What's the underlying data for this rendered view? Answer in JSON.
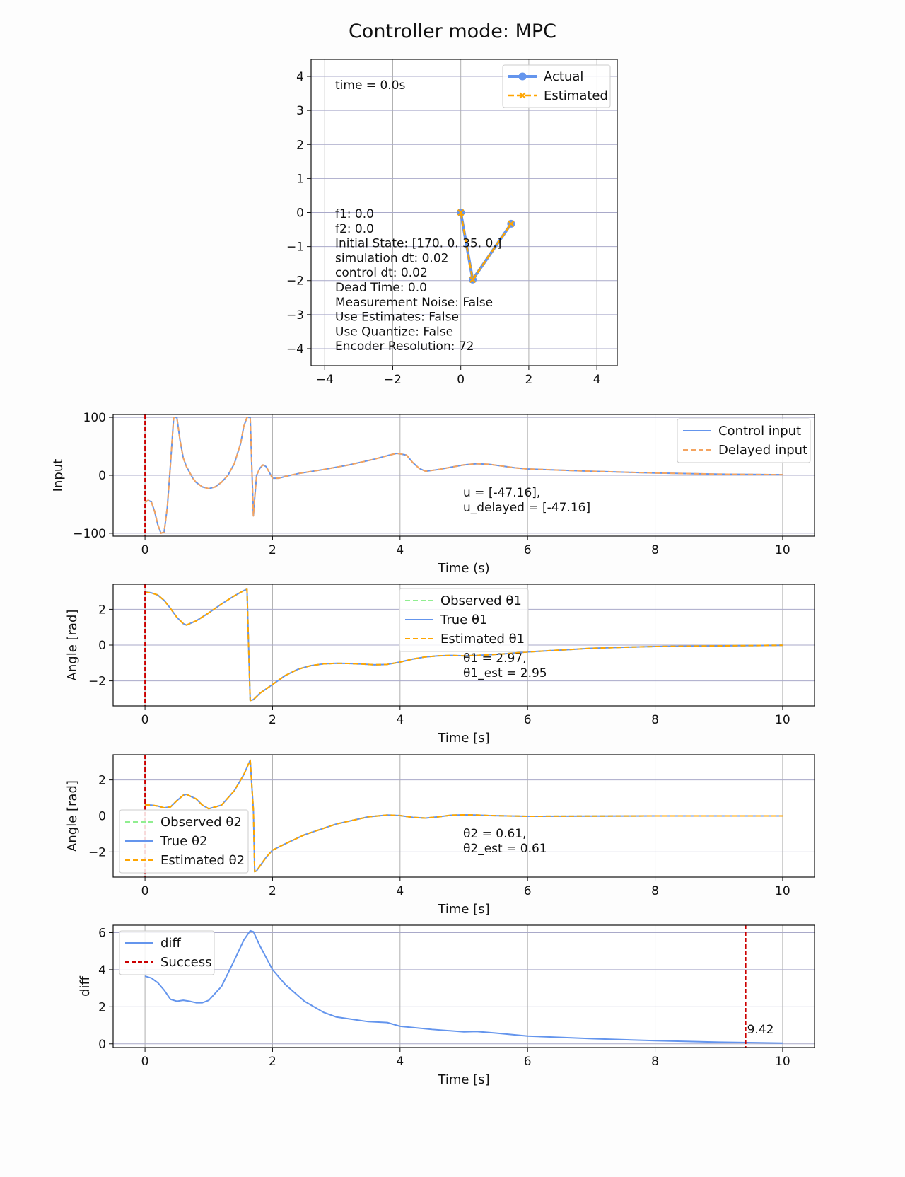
{
  "figure_title": "Controller mode: MPC",
  "colors": {
    "actual": "#6495ed",
    "estimated": "#ffa500",
    "delayed": "#f4a460",
    "observed": "#90ee90",
    "marker": "#cc0000",
    "grid": "#b0b0b0",
    "hgrid": "#a9a9c9"
  },
  "chart_data": [
    {
      "type": "line",
      "name": "pendulum",
      "xlim": [
        -4.4,
        4.6
      ],
      "ylim": [
        -4.5,
        4.5
      ],
      "xticks": [
        -4,
        -2,
        0,
        2,
        4
      ],
      "yticks": [
        -4,
        -3,
        -2,
        -1,
        0,
        1,
        2,
        3,
        4
      ],
      "time_text": "time = 0.0s",
      "info_lines": [
        "f1: 0.0",
        "f2: 0.0",
        "Initial State: [170.   0.  35.   0.]",
        "simulation dt: 0.02",
        "control dt: 0.02",
        "Dead Time: 0.0",
        "Measurement Noise: False",
        "Use Estimates: False",
        "Use Quantize: False",
        "Encoder Resolution: 72"
      ],
      "series": [
        {
          "name": "Actual",
          "x": [
            0,
            0.35,
            1.48
          ],
          "y": [
            0,
            -1.97,
            -0.33
          ]
        },
        {
          "name": "Estimated",
          "x": [
            0,
            0.35,
            1.48
          ],
          "y": [
            0,
            -1.97,
            -0.33
          ]
        }
      ],
      "legend": [
        "Actual",
        "Estimated"
      ],
      "legend_position": "upper right"
    },
    {
      "type": "line",
      "name": "input",
      "xlabel": "Time (s)",
      "ylabel": "Input",
      "xlim": [
        -0.5,
        10.5
      ],
      "ylim": [
        -105,
        105
      ],
      "xticks": [
        0,
        2,
        4,
        6,
        8,
        10
      ],
      "yticks": [
        -100,
        0,
        100
      ],
      "cursor_x": 0,
      "annotation": [
        "u = [-47.16],",
        "u_delayed = [-47.16]"
      ],
      "x": [
        0,
        0.05,
        0.1,
        0.15,
        0.2,
        0.25,
        0.3,
        0.35,
        0.4,
        0.45,
        0.5,
        0.55,
        0.6,
        0.65,
        0.7,
        0.75,
        0.8,
        0.9,
        1.0,
        1.1,
        1.2,
        1.3,
        1.4,
        1.5,
        1.55,
        1.6,
        1.65,
        1.7,
        1.72,
        1.75,
        1.8,
        1.85,
        1.9,
        2.0,
        2.1,
        2.2,
        2.4,
        2.8,
        3.2,
        3.6,
        3.8,
        3.95,
        4.1,
        4.2,
        4.3,
        4.4,
        4.6,
        4.8,
        5.0,
        5.2,
        5.4,
        5.6,
        5.8,
        6.0,
        6.5,
        7.0,
        8.0,
        9.0,
        10.0
      ],
      "series": [
        {
          "name": "Control input",
          "y": [
            -47,
            -43,
            -46,
            -62,
            -85,
            -100,
            -98,
            -55,
            20,
            100,
            100,
            60,
            30,
            15,
            5,
            -5,
            -12,
            -20,
            -23,
            -20,
            -12,
            0,
            20,
            55,
            85,
            100,
            100,
            -70,
            -40,
            0,
            12,
            18,
            15,
            -5,
            -5,
            -2,
            3,
            10,
            18,
            28,
            34,
            38,
            35,
            22,
            12,
            7,
            10,
            14,
            18,
            20,
            19,
            16,
            13,
            11,
            9,
            7,
            4,
            2,
            1
          ]
        },
        {
          "name": "Delayed input",
          "y": [
            -47,
            -43,
            -46,
            -62,
            -85,
            -100,
            -98,
            -55,
            20,
            100,
            100,
            60,
            30,
            15,
            5,
            -5,
            -12,
            -20,
            -23,
            -20,
            -12,
            0,
            20,
            55,
            85,
            100,
            100,
            -70,
            -40,
            0,
            12,
            18,
            15,
            -5,
            -5,
            -2,
            3,
            10,
            18,
            28,
            34,
            38,
            35,
            22,
            12,
            7,
            10,
            14,
            18,
            20,
            19,
            16,
            13,
            11,
            9,
            7,
            4,
            2,
            1
          ]
        }
      ],
      "legend": [
        "Control input",
        "Delayed input"
      ],
      "legend_position": "upper right"
    },
    {
      "type": "line",
      "name": "theta1",
      "xlabel": "Time [s]",
      "ylabel": "Angle [rad]",
      "xlim": [
        -0.5,
        10.5
      ],
      "ylim": [
        -3.4,
        3.4
      ],
      "xticks": [
        0,
        2,
        4,
        6,
        8,
        10
      ],
      "yticks": [
        -2,
        0,
        2
      ],
      "cursor_x": 0,
      "annotation": [
        "θ1 = 2.97,",
        "θ1_est = 2.95"
      ],
      "x": [
        0,
        0.1,
        0.2,
        0.3,
        0.4,
        0.5,
        0.6,
        0.65,
        0.8,
        1.0,
        1.2,
        1.4,
        1.55,
        1.6,
        1.62,
        1.65,
        1.7,
        1.8,
        2.0,
        2.2,
        2.4,
        2.6,
        2.8,
        3.0,
        3.2,
        3.4,
        3.6,
        3.8,
        4.0,
        4.2,
        4.4,
        4.6,
        4.8,
        5.0,
        5.2,
        5.6,
        6.0,
        6.5,
        7.0,
        7.5,
        8.0,
        9.0,
        10.0
      ],
      "series": [
        {
          "name": "Observed θ1",
          "y": [
            2.97,
            2.92,
            2.8,
            2.5,
            2.05,
            1.55,
            1.2,
            1.12,
            1.35,
            1.8,
            2.3,
            2.75,
            3.05,
            3.12,
            0.5,
            -3.1,
            -3.05,
            -2.7,
            -2.2,
            -1.7,
            -1.35,
            -1.15,
            -1.05,
            -1.02,
            -1.03,
            -1.06,
            -1.1,
            -1.08,
            -0.95,
            -0.78,
            -0.66,
            -0.6,
            -0.58,
            -0.6,
            -0.58,
            -0.5,
            -0.38,
            -0.28,
            -0.18,
            -0.12,
            -0.08,
            -0.04,
            -0.01
          ]
        },
        {
          "name": "True θ1",
          "y": [
            2.97,
            2.92,
            2.8,
            2.5,
            2.05,
            1.55,
            1.2,
            1.12,
            1.35,
            1.8,
            2.3,
            2.75,
            3.05,
            3.12,
            0.5,
            -3.1,
            -3.05,
            -2.7,
            -2.2,
            -1.7,
            -1.35,
            -1.15,
            -1.05,
            -1.02,
            -1.03,
            -1.06,
            -1.1,
            -1.08,
            -0.95,
            -0.78,
            -0.66,
            -0.6,
            -0.58,
            -0.6,
            -0.58,
            -0.5,
            -0.38,
            -0.28,
            -0.18,
            -0.12,
            -0.08,
            -0.04,
            -0.01
          ]
        },
        {
          "name": "Estimated θ1",
          "y": [
            2.95,
            2.92,
            2.8,
            2.5,
            2.05,
            1.55,
            1.2,
            1.12,
            1.35,
            1.8,
            2.3,
            2.75,
            3.05,
            3.12,
            0.5,
            -3.1,
            -3.05,
            -2.7,
            -2.2,
            -1.7,
            -1.35,
            -1.15,
            -1.05,
            -1.02,
            -1.03,
            -1.06,
            -1.1,
            -1.08,
            -0.95,
            -0.78,
            -0.66,
            -0.6,
            -0.58,
            -0.6,
            -0.58,
            -0.5,
            -0.38,
            -0.28,
            -0.18,
            -0.12,
            -0.08,
            -0.04,
            -0.01
          ]
        }
      ],
      "legend": [
        "Observed θ1",
        "True θ1",
        "Estimated θ1"
      ],
      "legend_position": "upper center"
    },
    {
      "type": "line",
      "name": "theta2",
      "xlabel": "Time [s]",
      "ylabel": "Angle [rad]",
      "xlim": [
        -0.5,
        10.5
      ],
      "ylim": [
        -3.4,
        3.4
      ],
      "xticks": [
        0,
        2,
        4,
        6,
        8,
        10
      ],
      "yticks": [
        -2,
        0,
        2
      ],
      "cursor_x": 0,
      "annotation": [
        "θ2 = 0.61,",
        "θ2_est = 0.61"
      ],
      "x": [
        0,
        0.1,
        0.2,
        0.3,
        0.4,
        0.5,
        0.6,
        0.65,
        0.8,
        0.9,
        1.0,
        1.2,
        1.4,
        1.55,
        1.65,
        1.7,
        1.72,
        1.75,
        1.8,
        1.9,
        2.0,
        2.2,
        2.5,
        3.0,
        3.5,
        3.8,
        4.0,
        4.2,
        4.4,
        4.6,
        4.8,
        5.0,
        5.2,
        5.4,
        6.0,
        7.0,
        8.0,
        9.0,
        10.0
      ],
      "series": [
        {
          "name": "Observed θ2",
          "y": [
            0.61,
            0.6,
            0.55,
            0.45,
            0.5,
            0.85,
            1.15,
            1.2,
            0.95,
            0.6,
            0.4,
            0.6,
            1.4,
            2.3,
            3.1,
            0.3,
            -3.1,
            -3.05,
            -2.8,
            -2.3,
            -1.9,
            -1.55,
            -1.05,
            -0.45,
            -0.05,
            0.05,
            0.02,
            -0.08,
            -0.12,
            -0.05,
            0.04,
            0.06,
            0.05,
            0.02,
            -0.02,
            -0.01,
            0.0,
            0.0,
            0.0
          ]
        },
        {
          "name": "True θ2",
          "y": [
            0.61,
            0.6,
            0.55,
            0.45,
            0.5,
            0.85,
            1.15,
            1.2,
            0.95,
            0.6,
            0.4,
            0.6,
            1.4,
            2.3,
            3.1,
            0.3,
            -3.1,
            -3.05,
            -2.8,
            -2.3,
            -1.9,
            -1.55,
            -1.05,
            -0.45,
            -0.05,
            0.05,
            0.02,
            -0.08,
            -0.12,
            -0.05,
            0.04,
            0.06,
            0.05,
            0.02,
            -0.02,
            -0.01,
            0.0,
            0.0,
            0.0
          ]
        },
        {
          "name": "Estimated θ2",
          "y": [
            0.61,
            0.6,
            0.55,
            0.45,
            0.5,
            0.85,
            1.15,
            1.2,
            0.95,
            0.6,
            0.4,
            0.6,
            1.4,
            2.3,
            3.1,
            0.3,
            -3.1,
            -3.05,
            -2.8,
            -2.3,
            -1.9,
            -1.55,
            -1.05,
            -0.45,
            -0.05,
            0.05,
            0.02,
            -0.08,
            -0.12,
            -0.05,
            0.04,
            0.06,
            0.05,
            0.02,
            -0.02,
            -0.01,
            0.0,
            0.0,
            0.0
          ]
        }
      ],
      "legend": [
        "Observed θ2",
        "True θ2",
        "Estimated θ2"
      ],
      "legend_position": "lower left"
    },
    {
      "type": "line",
      "name": "diff",
      "xlabel": "Time [s]",
      "ylabel": "diff",
      "xlim": [
        -0.5,
        10.5
      ],
      "ylim": [
        -0.2,
        6.4
      ],
      "xticks": [
        0,
        2,
        4,
        6,
        8,
        10
      ],
      "yticks": [
        0,
        2,
        4,
        6
      ],
      "success_x": 9.42,
      "success_label": "9.42",
      "x": [
        0,
        0.1,
        0.2,
        0.3,
        0.4,
        0.5,
        0.6,
        0.7,
        0.8,
        0.9,
        1.0,
        1.2,
        1.4,
        1.55,
        1.65,
        1.7,
        1.8,
        2.0,
        2.2,
        2.5,
        2.8,
        3.0,
        3.5,
        3.8,
        4.0,
        4.5,
        5.0,
        5.2,
        5.5,
        6.0,
        7.0,
        8.0,
        9.0,
        10.0
      ],
      "series": [
        {
          "name": "diff",
          "y": [
            3.65,
            3.55,
            3.3,
            2.9,
            2.4,
            2.3,
            2.35,
            2.3,
            2.22,
            2.22,
            2.35,
            3.1,
            4.5,
            5.6,
            6.1,
            6.05,
            5.3,
            4.0,
            3.2,
            2.3,
            1.7,
            1.45,
            1.2,
            1.15,
            0.95,
            0.78,
            0.65,
            0.67,
            0.58,
            0.42,
            0.28,
            0.17,
            0.09,
            0.04
          ]
        }
      ],
      "legend": [
        "diff",
        "Success"
      ],
      "legend_position": "upper left"
    }
  ]
}
